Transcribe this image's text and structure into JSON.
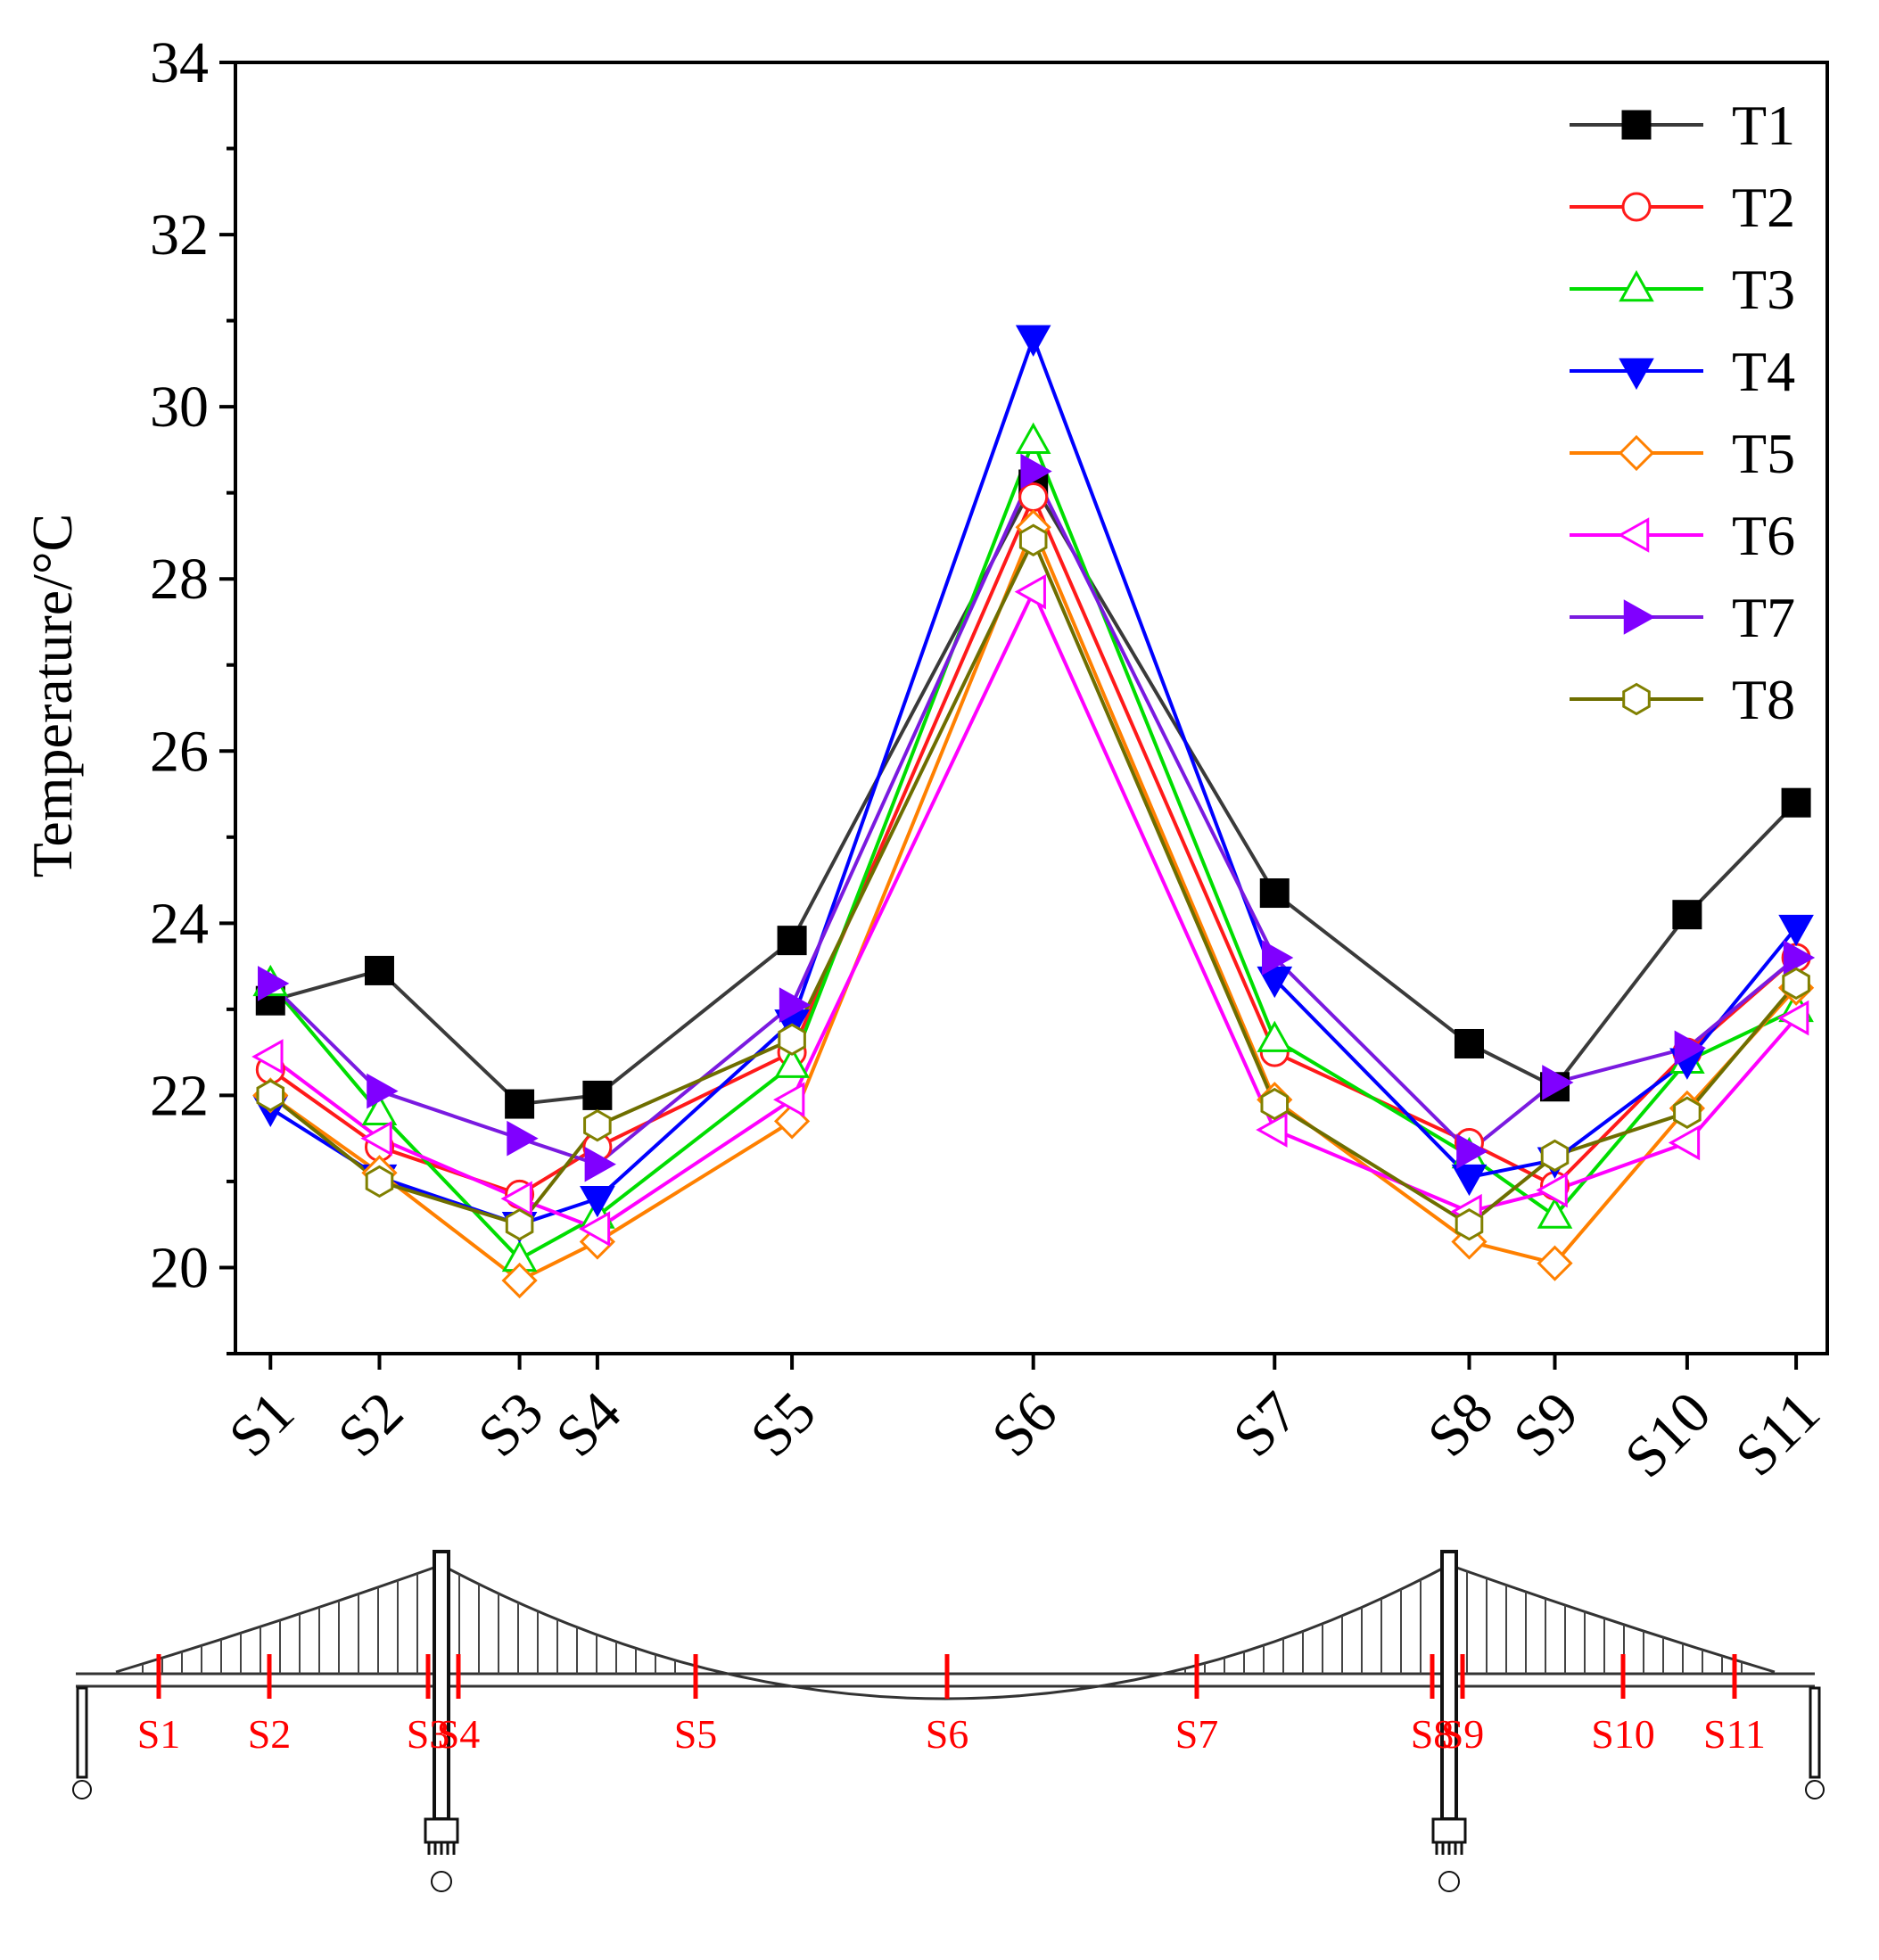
{
  "chart_data": {
    "type": "line",
    "title": "",
    "ylabel": "Temperature/°C",
    "xlabel": "",
    "x": [
      0,
      1.4,
      3.2,
      4.2,
      6.7,
      9.8,
      12.9,
      15.4,
      16.5,
      18.2,
      19.6
    ],
    "categories": [
      "S1",
      "S2",
      "S3",
      "S4",
      "S5",
      "S6",
      "S7",
      "S8",
      "S9",
      "S10",
      "S11"
    ],
    "xlim": [
      -0.45,
      20.0
    ],
    "ylim": [
      19,
      34
    ],
    "yticks": [
      20,
      22,
      24,
      26,
      28,
      30,
      32,
      34
    ],
    "ytick_labels": [
      "20",
      "22",
      "24",
      "26",
      "28",
      "30",
      "32",
      "34"
    ],
    "grid": false,
    "legend_position": "top-right",
    "series": [
      {
        "name": "T1",
        "color": "#000000",
        "line_color": "#3a3a3a",
        "marker": "square-filled",
        "values": [
          23.1,
          23.45,
          21.9,
          22.0,
          23.8,
          29.1,
          24.35,
          22.6,
          22.1,
          24.1,
          25.4
        ]
      },
      {
        "name": "T2",
        "color": "#ff1a1a",
        "line_color": "#ff1a1a",
        "marker": "circle-open",
        "values": [
          22.3,
          21.4,
          20.85,
          21.4,
          22.5,
          28.95,
          22.5,
          21.45,
          20.95,
          22.5,
          23.6
        ]
      },
      {
        "name": "T3",
        "color": "#00dd00",
        "line_color": "#00dd00",
        "marker": "triangle-up-open",
        "values": [
          23.3,
          21.8,
          20.1,
          20.6,
          22.35,
          29.6,
          22.65,
          21.3,
          20.6,
          22.4,
          23.0
        ]
      },
      {
        "name": "T4",
        "color": "#0000ff",
        "line_color": "#0000ff",
        "marker": "triangle-down-filled",
        "values": [
          21.85,
          21.05,
          20.5,
          20.8,
          22.85,
          30.8,
          23.35,
          21.05,
          21.25,
          22.4,
          23.95
        ]
      },
      {
        "name": "T5",
        "color": "#ff8000",
        "line_color": "#ff8000",
        "marker": "diamond-open",
        "values": [
          22.0,
          21.1,
          19.85,
          20.3,
          21.7,
          28.6,
          21.95,
          20.3,
          20.05,
          21.85,
          23.25
        ]
      },
      {
        "name": "T6",
        "color": "#ff00ff",
        "line_color": "#ff00ff",
        "marker": "triangle-left-open",
        "values": [
          22.45,
          21.5,
          20.8,
          20.45,
          21.95,
          27.85,
          21.6,
          20.65,
          20.9,
          21.45,
          22.9
        ]
      },
      {
        "name": "T7",
        "color": "#8000ff",
        "line_color": "#7a1ae0",
        "marker": "triangle-right-filled",
        "values": [
          23.3,
          22.05,
          21.5,
          21.2,
          23.05,
          29.25,
          23.6,
          21.35,
          22.15,
          22.55,
          23.6
        ]
      },
      {
        "name": "T8",
        "color": "#808000",
        "line_color": "#6e6e00",
        "marker": "hexagon-open",
        "values": [
          22.0,
          21.0,
          20.5,
          21.65,
          22.65,
          28.45,
          21.9,
          20.5,
          21.3,
          21.8,
          23.3
        ]
      }
    ]
  },
  "bridge": {
    "sections": [
      "S1",
      "S2",
      "S3",
      "S4",
      "S5",
      "S6",
      "S7",
      "S8",
      "S9",
      "S10",
      "S11"
    ],
    "marker_color": "#ff0000"
  }
}
